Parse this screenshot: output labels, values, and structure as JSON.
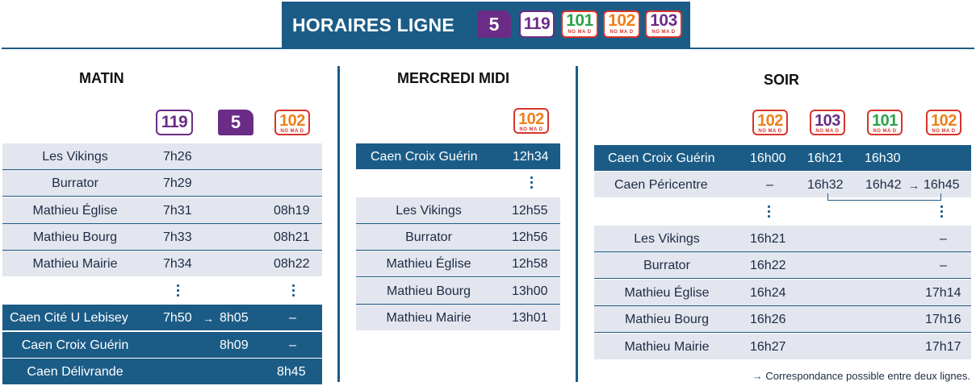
{
  "header": {
    "title": "HORAIRES LIGNE",
    "badges": [
      "5",
      "119",
      "101",
      "102",
      "103"
    ],
    "nomad": "NO MA D"
  },
  "matin": {
    "title": "MATIN",
    "lines": [
      "119",
      "5",
      "102"
    ],
    "rows": [
      {
        "stop": "Les Vikings",
        "a": "7h26",
        "b": "",
        "c": ""
      },
      {
        "stop": "Burrator",
        "a": "7h29",
        "b": "",
        "c": ""
      },
      {
        "stop": "Mathieu Église",
        "a": "7h31",
        "b": "",
        "c": "08h19"
      },
      {
        "stop": "Mathieu Bourg",
        "a": "7h33",
        "b": "",
        "c": "08h21"
      },
      {
        "stop": "Mathieu Mairie",
        "a": "7h34",
        "b": "",
        "c": "08h22"
      },
      {
        "stop": "Caen Cité U Lebisey",
        "a": "7h50",
        "b": "8h05",
        "c": "–"
      },
      {
        "stop": "Caen Croix Guérin",
        "a": "",
        "b": "8h09",
        "c": "–"
      },
      {
        "stop": "Caen Délivrande",
        "a": "",
        "b": "",
        "c": "8h45"
      }
    ]
  },
  "midi": {
    "title": "MERCREDI MIDI",
    "line": "102",
    "rows": [
      {
        "stop": "Caen Croix Guérin",
        "t": "12h34"
      },
      {
        "stop": "Les Vikings",
        "t": "12h55"
      },
      {
        "stop": "Burrator",
        "t": "12h56"
      },
      {
        "stop": "Mathieu Église",
        "t": "12h58"
      },
      {
        "stop": "Mathieu Bourg",
        "t": "13h00"
      },
      {
        "stop": "Mathieu Mairie",
        "t": "13h01"
      }
    ]
  },
  "soir": {
    "title": "SOIR",
    "lines": [
      "102",
      "103",
      "101",
      "102"
    ],
    "top_rows": [
      {
        "stop": "Caen Croix Guérin",
        "a": "16h00",
        "b": "16h21",
        "c": "16h30",
        "d": ""
      },
      {
        "stop": "Caen Péricentre",
        "a": "–",
        "b": "16h32",
        "c": "16h42",
        "d": "16h45"
      }
    ],
    "rows": [
      {
        "stop": "Les Vikings",
        "a": "16h21",
        "d": "–"
      },
      {
        "stop": "Burrator",
        "a": "16h22",
        "d": "–"
      },
      {
        "stop": "Mathieu Église",
        "a": "16h24",
        "d": "17h14"
      },
      {
        "stop": "Mathieu Bourg",
        "a": "16h26",
        "d": "17h16"
      },
      {
        "stop": "Mathieu Mairie",
        "a": "16h27",
        "d": "17h17"
      }
    ]
  },
  "note": {
    "arrow": "→",
    "text": "Correspondance possible entre deux lignes."
  },
  "arrow": "→",
  "colors": {
    "navy": "#1b5c87",
    "purple": "#6a2c86",
    "orange": "#ef7f1a",
    "green": "#2aa34a",
    "red": "#d9342b",
    "row_light": "#e3e6ee"
  }
}
